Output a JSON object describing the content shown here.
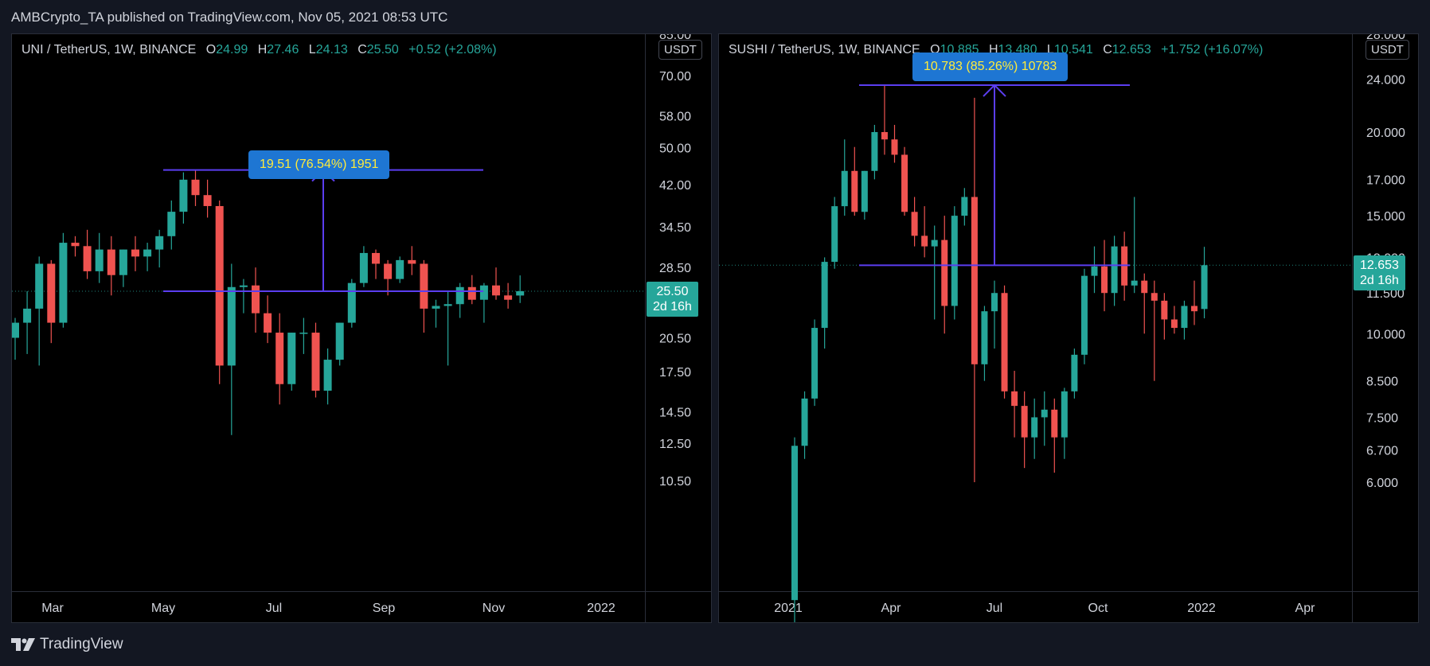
{
  "header": {
    "published": "AMBCrypto_TA published on TradingView.com, Nov 05, 2021 08:53 UTC"
  },
  "footer": {
    "brand": "TradingView"
  },
  "colors": {
    "up": "#26a69a",
    "down": "#ef5350",
    "measure": "#5b3ef0",
    "background": "#000000",
    "grid": "#131722"
  },
  "chart_data": [
    {
      "type": "candlestick",
      "symbol": "UNI / TetherUS, 1W, BINANCE",
      "ohlc_labels": {
        "o": "O",
        "h": "H",
        "l": "L",
        "c": "C"
      },
      "last_ohlc": {
        "open": "24.99",
        "high": "27.46",
        "low": "24.13",
        "close": "25.50",
        "change": "+0.52 (+2.08%)"
      },
      "unit": "USDT",
      "y_scale": "log",
      "y_ticks": [
        "85.00",
        "70.00",
        "58.00",
        "50.00",
        "42.00",
        "34.50",
        "28.50",
        "20.50",
        "17.50",
        "14.50",
        "12.50",
        "10.50"
      ],
      "x_ticks": [
        "Mar",
        "May",
        "Jul",
        "Sep",
        "Nov",
        "2022"
      ],
      "last_price": "25.50",
      "countdown": "2d 16h",
      "measure": {
        "label": "19.51 (76.54%) 1951",
        "from_price": 25.5,
        "to_price": 45.0
      },
      "candles": [
        {
          "o": 20.5,
          "h": 22.5,
          "l": 18.5,
          "c": 22.0
        },
        {
          "o": 22.0,
          "h": 25.5,
          "l": 19.0,
          "c": 23.5
        },
        {
          "o": 23.5,
          "h": 30.0,
          "l": 18.0,
          "c": 29.0
        },
        {
          "o": 29.0,
          "h": 29.5,
          "l": 20.0,
          "c": 22.0
        },
        {
          "o": 22.0,
          "h": 33.5,
          "l": 21.5,
          "c": 32.0
        },
        {
          "o": 32.0,
          "h": 33.0,
          "l": 30.0,
          "c": 31.5
        },
        {
          "o": 31.5,
          "h": 34.0,
          "l": 27.0,
          "c": 28.0
        },
        {
          "o": 28.0,
          "h": 33.5,
          "l": 26.5,
          "c": 31.0
        },
        {
          "o": 31.0,
          "h": 33.0,
          "l": 25.0,
          "c": 27.5
        },
        {
          "o": 27.5,
          "h": 31.0,
          "l": 26.0,
          "c": 31.0
        },
        {
          "o": 31.0,
          "h": 33.0,
          "l": 28.0,
          "c": 30.0
        },
        {
          "o": 30.0,
          "h": 32.0,
          "l": 28.0,
          "c": 31.0
        },
        {
          "o": 31.0,
          "h": 34.0,
          "l": 28.5,
          "c": 33.0
        },
        {
          "o": 33.0,
          "h": 39.0,
          "l": 31.0,
          "c": 37.0
        },
        {
          "o": 37.0,
          "h": 44.5,
          "l": 35.0,
          "c": 43.0
        },
        {
          "o": 43.0,
          "h": 45.0,
          "l": 38.0,
          "c": 40.0
        },
        {
          "o": 40.0,
          "h": 43.0,
          "l": 36.0,
          "c": 38.0
        },
        {
          "o": 38.0,
          "h": 39.0,
          "l": 16.5,
          "c": 18.0
        },
        {
          "o": 18.0,
          "h": 29.0,
          "l": 13.0,
          "c": 26.0
        },
        {
          "o": 26.0,
          "h": 27.0,
          "l": 23.0,
          "c": 26.2
        },
        {
          "o": 26.2,
          "h": 28.5,
          "l": 21.0,
          "c": 23.0
        },
        {
          "o": 23.0,
          "h": 25.0,
          "l": 20.0,
          "c": 21.0
        },
        {
          "o": 21.0,
          "h": 23.0,
          "l": 15.0,
          "c": 16.5
        },
        {
          "o": 16.5,
          "h": 21.0,
          "l": 16.0,
          "c": 21.0
        },
        {
          "o": 21.0,
          "h": 22.5,
          "l": 19.0,
          "c": 21.0
        },
        {
          "o": 21.0,
          "h": 22.0,
          "l": 15.5,
          "c": 16.0
        },
        {
          "o": 16.0,
          "h": 19.5,
          "l": 15.0,
          "c": 18.5
        },
        {
          "o": 18.5,
          "h": 22.0,
          "l": 18.0,
          "c": 22.0
        },
        {
          "o": 22.0,
          "h": 27.0,
          "l": 21.5,
          "c": 26.5
        },
        {
          "o": 26.5,
          "h": 31.5,
          "l": 26.0,
          "c": 30.5
        },
        {
          "o": 30.5,
          "h": 31.0,
          "l": 27.0,
          "c": 29.0
        },
        {
          "o": 29.0,
          "h": 29.5,
          "l": 25.0,
          "c": 27.0
        },
        {
          "o": 27.0,
          "h": 30.0,
          "l": 26.5,
          "c": 29.5
        },
        {
          "o": 29.5,
          "h": 31.5,
          "l": 27.5,
          "c": 29.0
        },
        {
          "o": 29.0,
          "h": 29.5,
          "l": 21.0,
          "c": 23.5
        },
        {
          "o": 23.5,
          "h": 24.5,
          "l": 21.5,
          "c": 23.8
        },
        {
          "o": 23.8,
          "h": 25.5,
          "l": 18.0,
          "c": 24.0
        },
        {
          "o": 24.0,
          "h": 26.5,
          "l": 22.5,
          "c": 26.0
        },
        {
          "o": 26.0,
          "h": 27.5,
          "l": 24.0,
          "c": 24.5
        },
        {
          "o": 24.5,
          "h": 26.5,
          "l": 22.0,
          "c": 26.2
        },
        {
          "o": 26.2,
          "h": 28.5,
          "l": 24.5,
          "c": 25.0
        },
        {
          "o": 25.0,
          "h": 26.5,
          "l": 23.5,
          "c": 24.5
        },
        {
          "o": 24.99,
          "h": 27.46,
          "l": 24.13,
          "c": 25.5
        }
      ]
    },
    {
      "type": "candlestick",
      "symbol": "SUSHI / TetherUS, 1W, BINANCE",
      "ohlc_labels": {
        "o": "O",
        "h": "H",
        "l": "L",
        "c": "C"
      },
      "last_ohlc": {
        "open": "10.885",
        "high": "13.480",
        "low": "10.541",
        "close": "12.653",
        "change": "+1.752 (+16.07%)"
      },
      "unit": "USDT",
      "y_scale": "log",
      "y_ticks": [
        "28.000",
        "24.000",
        "20.000",
        "17.000",
        "15.000",
        "13.000",
        "11.500",
        "10.000",
        "8.500",
        "7.500",
        "6.700",
        "6.000"
      ],
      "x_ticks": [
        "2021",
        "Apr",
        "Jul",
        "Oct",
        "2022",
        "Apr"
      ],
      "last_price": "12.653",
      "countdown": "2d 16h",
      "measure": {
        "label": "10.783 (85.26%) 10783",
        "from_price": 12.65,
        "to_price": 23.5
      },
      "candles": [
        {
          "o": 4.0,
          "h": 7.0,
          "l": 3.5,
          "c": 6.8
        },
        {
          "o": 6.8,
          "h": 8.2,
          "l": 6.5,
          "c": 8.0
        },
        {
          "o": 8.0,
          "h": 10.5,
          "l": 7.8,
          "c": 10.2
        },
        {
          "o": 10.2,
          "h": 13.0,
          "l": 9.5,
          "c": 12.8
        },
        {
          "o": 12.8,
          "h": 16.0,
          "l": 12.5,
          "c": 15.5
        },
        {
          "o": 15.5,
          "h": 19.5,
          "l": 15.0,
          "c": 17.5
        },
        {
          "o": 17.5,
          "h": 19.0,
          "l": 15.0,
          "c": 15.2
        },
        {
          "o": 15.2,
          "h": 17.5,
          "l": 14.8,
          "c": 17.5
        },
        {
          "o": 17.5,
          "h": 20.5,
          "l": 17.0,
          "c": 20.0
        },
        {
          "o": 20.0,
          "h": 23.5,
          "l": 18.5,
          "c": 19.5
        },
        {
          "o": 19.5,
          "h": 20.5,
          "l": 18.0,
          "c": 18.5
        },
        {
          "o": 18.5,
          "h": 19.0,
          "l": 15.0,
          "c": 15.2
        },
        {
          "o": 15.2,
          "h": 16.0,
          "l": 13.5,
          "c": 14.0
        },
        {
          "o": 14.0,
          "h": 15.5,
          "l": 13.0,
          "c": 13.5
        },
        {
          "o": 13.5,
          "h": 14.5,
          "l": 10.5,
          "c": 13.8
        },
        {
          "o": 13.8,
          "h": 15.0,
          "l": 10.0,
          "c": 11.0
        },
        {
          "o": 11.0,
          "h": 15.5,
          "l": 10.5,
          "c": 15.0
        },
        {
          "o": 15.0,
          "h": 16.5,
          "l": 14.5,
          "c": 16.0
        },
        {
          "o": 16.0,
          "h": 22.5,
          "l": 6.0,
          "c": 9.0
        },
        {
          "o": 9.0,
          "h": 11.0,
          "l": 8.5,
          "c": 10.8
        },
        {
          "o": 10.8,
          "h": 12.0,
          "l": 9.5,
          "c": 11.5
        },
        {
          "o": 11.5,
          "h": 11.8,
          "l": 8.0,
          "c": 8.2
        },
        {
          "o": 8.2,
          "h": 8.8,
          "l": 7.0,
          "c": 7.8
        },
        {
          "o": 7.8,
          "h": 8.2,
          "l": 6.3,
          "c": 7.0
        },
        {
          "o": 7.0,
          "h": 8.0,
          "l": 6.5,
          "c": 7.5
        },
        {
          "o": 7.5,
          "h": 8.2,
          "l": 6.8,
          "c": 7.7
        },
        {
          "o": 7.7,
          "h": 8.0,
          "l": 6.2,
          "c": 7.0
        },
        {
          "o": 7.0,
          "h": 8.3,
          "l": 6.5,
          "c": 8.2
        },
        {
          "o": 8.2,
          "h": 9.5,
          "l": 8.0,
          "c": 9.3
        },
        {
          "o": 9.3,
          "h": 12.5,
          "l": 9.0,
          "c": 12.2
        },
        {
          "o": 12.2,
          "h": 13.5,
          "l": 11.5,
          "c": 12.6
        },
        {
          "o": 12.6,
          "h": 13.8,
          "l": 10.8,
          "c": 11.5
        },
        {
          "o": 11.5,
          "h": 14.0,
          "l": 11.0,
          "c": 13.5
        },
        {
          "o": 13.5,
          "h": 14.2,
          "l": 11.2,
          "c": 11.8
        },
        {
          "o": 11.8,
          "h": 16.0,
          "l": 11.5,
          "c": 12.0
        },
        {
          "o": 12.0,
          "h": 12.3,
          "l": 10.0,
          "c": 11.5
        },
        {
          "o": 11.5,
          "h": 12.0,
          "l": 8.5,
          "c": 11.2
        },
        {
          "o": 11.2,
          "h": 11.5,
          "l": 9.8,
          "c": 10.5
        },
        {
          "o": 10.5,
          "h": 11.0,
          "l": 10.0,
          "c": 10.2
        },
        {
          "o": 10.2,
          "h": 11.2,
          "l": 9.8,
          "c": 11.0
        },
        {
          "o": 11.0,
          "h": 12.0,
          "l": 10.3,
          "c": 10.8
        },
        {
          "o": 10.885,
          "h": 13.48,
          "l": 10.541,
          "c": 12.653
        }
      ]
    }
  ]
}
